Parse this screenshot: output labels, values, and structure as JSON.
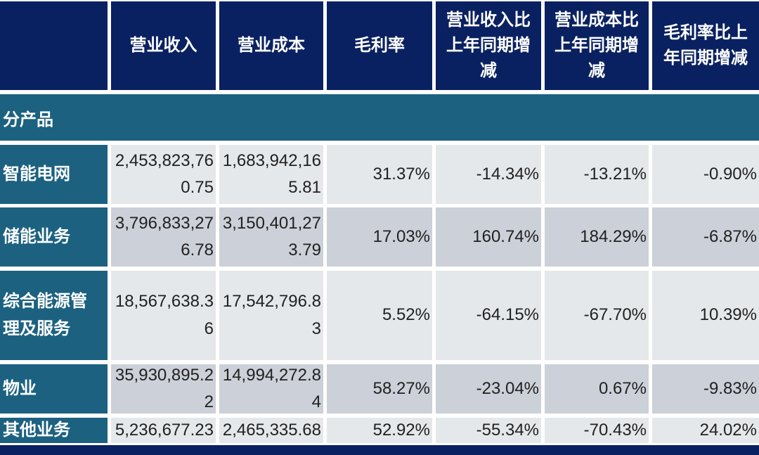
{
  "table": {
    "header": {
      "blank": "",
      "columns": [
        "营业收入",
        "营业成本",
        "毛利率",
        "营业收入比上年同期增减",
        "营业成本比上年同期增减",
        "毛利率比上年同期增减"
      ]
    },
    "section": {
      "label": "分产品"
    },
    "rows": [
      {
        "label": "智能电网",
        "cells": [
          "2,453,823,760.75",
          "1,683,942,165.81",
          "31.37%",
          "-14.34%",
          "-13.21%",
          "-0.90%"
        ]
      },
      {
        "label": "储能业务",
        "cells": [
          "3,796,833,276.78",
          "3,150,401,273.79",
          "17.03%",
          "160.74%",
          "184.29%",
          "-6.87%"
        ]
      },
      {
        "label": "综合能源管理及服务",
        "cells": [
          "18,567,638.36",
          "17,542,796.83",
          "5.52%",
          "-64.15%",
          "-67.70%",
          "10.39%"
        ]
      },
      {
        "label": "物业",
        "cells": [
          "35,930,895.22",
          "14,994,272.84",
          "58.27%",
          "-23.04%",
          "0.67%",
          "-9.83%"
        ]
      },
      {
        "label": "其他业务",
        "cells": [
          "5,236,677.23",
          "2,465,335.68",
          "52.92%",
          "-55.34%",
          "-70.43%",
          "24.02%"
        ]
      }
    ],
    "colors": {
      "header_navy": "#0a2161",
      "teal": "#1c6180",
      "row_light": "#e5e8eb",
      "row_dark": "#ccd0d8",
      "text_dark": "#212121",
      "text_light": "#ffffff"
    }
  }
}
